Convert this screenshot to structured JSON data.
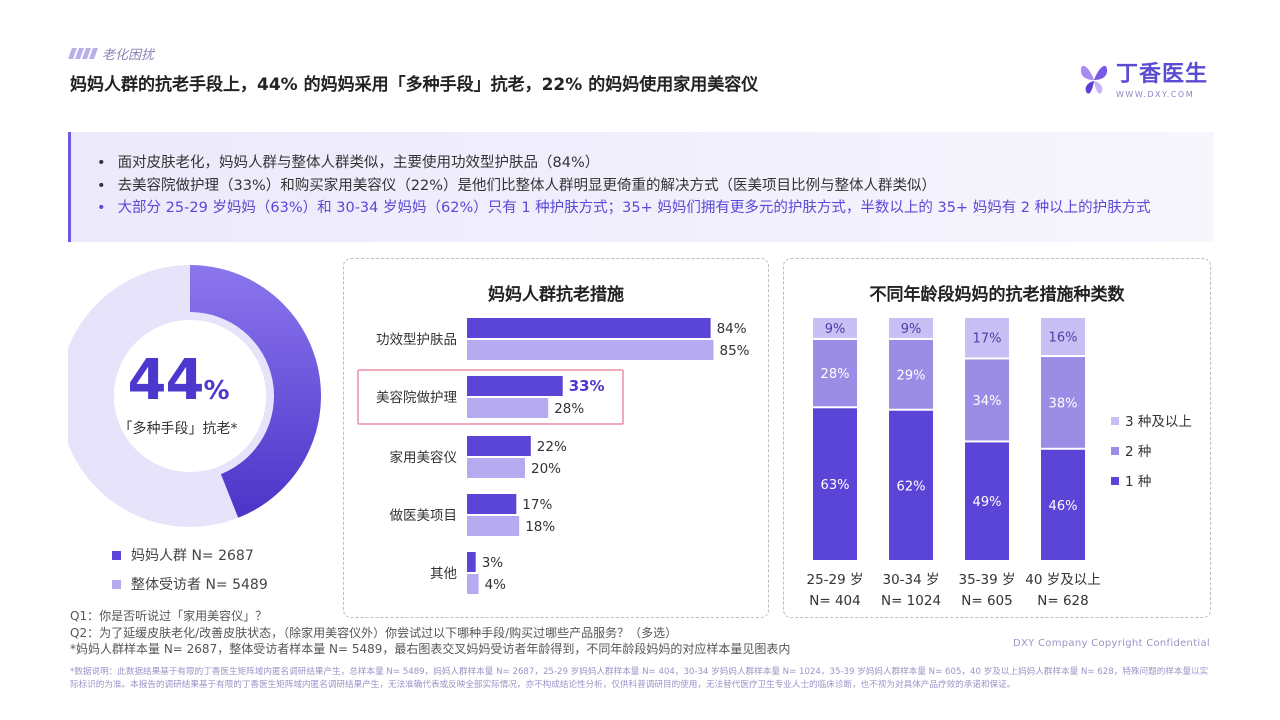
{
  "header": {
    "tag": "老化困扰",
    "title": "妈妈人群的抗老手段上，44% 的妈妈采用「多种手段」抗老，22% 的妈妈使用家用美容仪"
  },
  "logo": {
    "cn": "丁香医生",
    "en": "WWW.DXY.COM"
  },
  "summary": {
    "points": [
      "面对皮肤老化，妈妈人群与整体人群类似，主要使用功效型护肤品（84%）",
      "去美容院做护理（33%）和购买家用美容仪（22%）是他们比整体人群明显更倚重的解决方式（医美项目比例与整体人群类似）",
      "大部分 25-29 岁妈妈（63%）和 30-34 岁妈妈（62%）只有 1 种护肤方式；35+ 妈妈们拥有更多元的护肤方式，半数以上的 35+ 妈妈有 2 种以上的护肤方式"
    ]
  },
  "donut": {
    "value_num": "44",
    "value_unit": "%",
    "caption": "「多种手段」抗老*",
    "legend": [
      {
        "label": "妈妈人群 N= 2687",
        "color": "#5a45d6"
      },
      {
        "label": "整体受访者 N= 5489",
        "color": "#b6aaf0"
      }
    ]
  },
  "chart_data": [
    {
      "type": "pie",
      "values": [
        44,
        56
      ],
      "colors": [
        "#6d58e6",
        "#e7e3fb"
      ]
    },
    {
      "type": "bar",
      "title": "妈妈人群抗老措施",
      "categories": [
        "功效型护肤品",
        "美容院做护理",
        "家用美容仪",
        "做医美项目",
        "其他"
      ],
      "series": [
        {
          "name": "妈妈人群 N= 2687",
          "values": [
            84,
            33,
            22,
            17,
            3
          ],
          "labels": [
            "84%",
            "33%",
            "22%",
            "17%",
            "3%"
          ],
          "color": "#5a45d6"
        },
        {
          "name": "整体受访者 N= 5489",
          "values": [
            85,
            28,
            20,
            18,
            4
          ],
          "labels": [
            "85%",
            "28%",
            "20%",
            "18%",
            "4%"
          ],
          "color": "#b6aaf0"
        }
      ],
      "highlight_category": "美容院做护理",
      "xlim": [
        0,
        100
      ]
    },
    {
      "type": "bar",
      "title": "不同年龄段妈妈的抗老措施种类数",
      "categories": [
        "25-29 岁",
        "30-34 岁",
        "35-39 岁",
        "40 岁及以上"
      ],
      "samples": [
        "N= 404",
        "N= 1024",
        "N= 605",
        "N= 628"
      ],
      "series": [
        {
          "name": "1 种",
          "values": [
            63,
            62,
            49,
            46
          ],
          "labels": [
            "63%",
            "62%",
            "49%",
            "46%"
          ],
          "color": "#5a45d6"
        },
        {
          "name": "2 种",
          "values": [
            28,
            29,
            34,
            38
          ],
          "labels": [
            "28%",
            "29%",
            "34%",
            "38%"
          ],
          "color": "#9b8ce6"
        },
        {
          "name": "3 种及以上",
          "values": [
            9,
            9,
            17,
            16
          ],
          "labels": [
            "9%",
            "9%",
            "17%",
            "16%"
          ],
          "color": "#c8bff4"
        }
      ],
      "stacked": true,
      "ylim": [
        0,
        100
      ],
      "legend_position": "right"
    }
  ],
  "notes": [
    "Q1：你是否听说过「家用美容仪」？",
    "Q2：为了延缓皮肤老化/改善皮肤状态，（除家用美容仪外）你尝试过以下哪种手段/购买过哪些产品服务？（多选）",
    "*妈妈人群样本量 N= 2687，整体受访者样本量 N= 5489，最右图表交叉妈妈受访者年龄得到，不同年龄段妈妈的对应样本量见图表内"
  ],
  "copyright": "DXY Company Copyright Confidential",
  "fine_print": "*数据说明：此数据结果基于有限的丁香医生矩阵域内匿名调研结果产生，总样本量 N= 5489，妈妈人群样本量 N= 2687，25-29 岁妈妈人群样本量 N= 404，30-34 岁妈妈人群样本量 N= 1024，35-39 岁妈妈人群样本量 N= 605，40 岁及以上妈妈人群样本量 N= 628，特殊问题的样本量以实际标识的为准。本报告的调研结果基于有限的丁香医生矩阵域内匿名调研结果产生，无法准确代表或反映全部实际情况，亦不构成结论性分析，仅供科普调研目的使用，无法替代医疗卫生专业人士的临床诊断，也不视为对具体产品疗效的承诺和保证。"
}
